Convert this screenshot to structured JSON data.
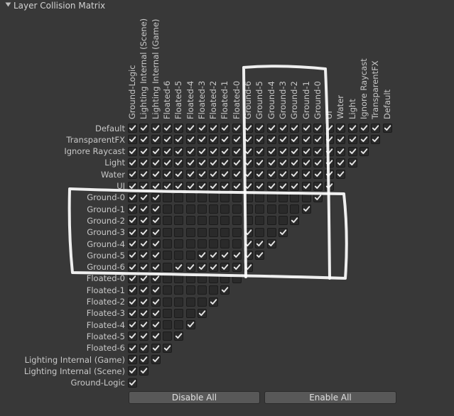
{
  "header": {
    "title": "Layer Collision Matrix",
    "foldout_icon": "triangle-down-icon"
  },
  "layers": [
    "Default",
    "TransparentFX",
    "Ignore Raycast",
    "Light",
    "Water",
    "UI",
    "Ground-0",
    "Ground-1",
    "Ground-2",
    "Ground-3",
    "Ground-4",
    "Ground-5",
    "Ground-6",
    "Floated-0",
    "Floated-1",
    "Floated-2",
    "Floated-3",
    "Floated-4",
    "Floated-5",
    "Floated-6",
    "Lighting Internal (Game)",
    "Lighting Internal (Scene)",
    "Ground-Logic"
  ],
  "matrix_rows": [
    "11111111111111111111111",
    "1111111111111111111111",
    "111111111111111111111",
    "11111111111111111111",
    "1111111111111111111",
    "111111111111111111",
    "11100000000000001",
    "1110000000000001",
    "111000000000001",
    "11100000001001",
    "1110000000111",
    "111000111111",
    "11101111111",
    "1110000000",
    "111000001",
    "11100001",
    "1110001",
    "111001",
    "11101",
    "1111",
    "111",
    "11",
    "1"
  ],
  "buttons": {
    "disable_all": "Disable All",
    "enable_all": "Enable All"
  },
  "colors": {
    "background": "#383838",
    "checkmark": "#e6e6e6",
    "annotation_stroke": "#ffffff"
  }
}
